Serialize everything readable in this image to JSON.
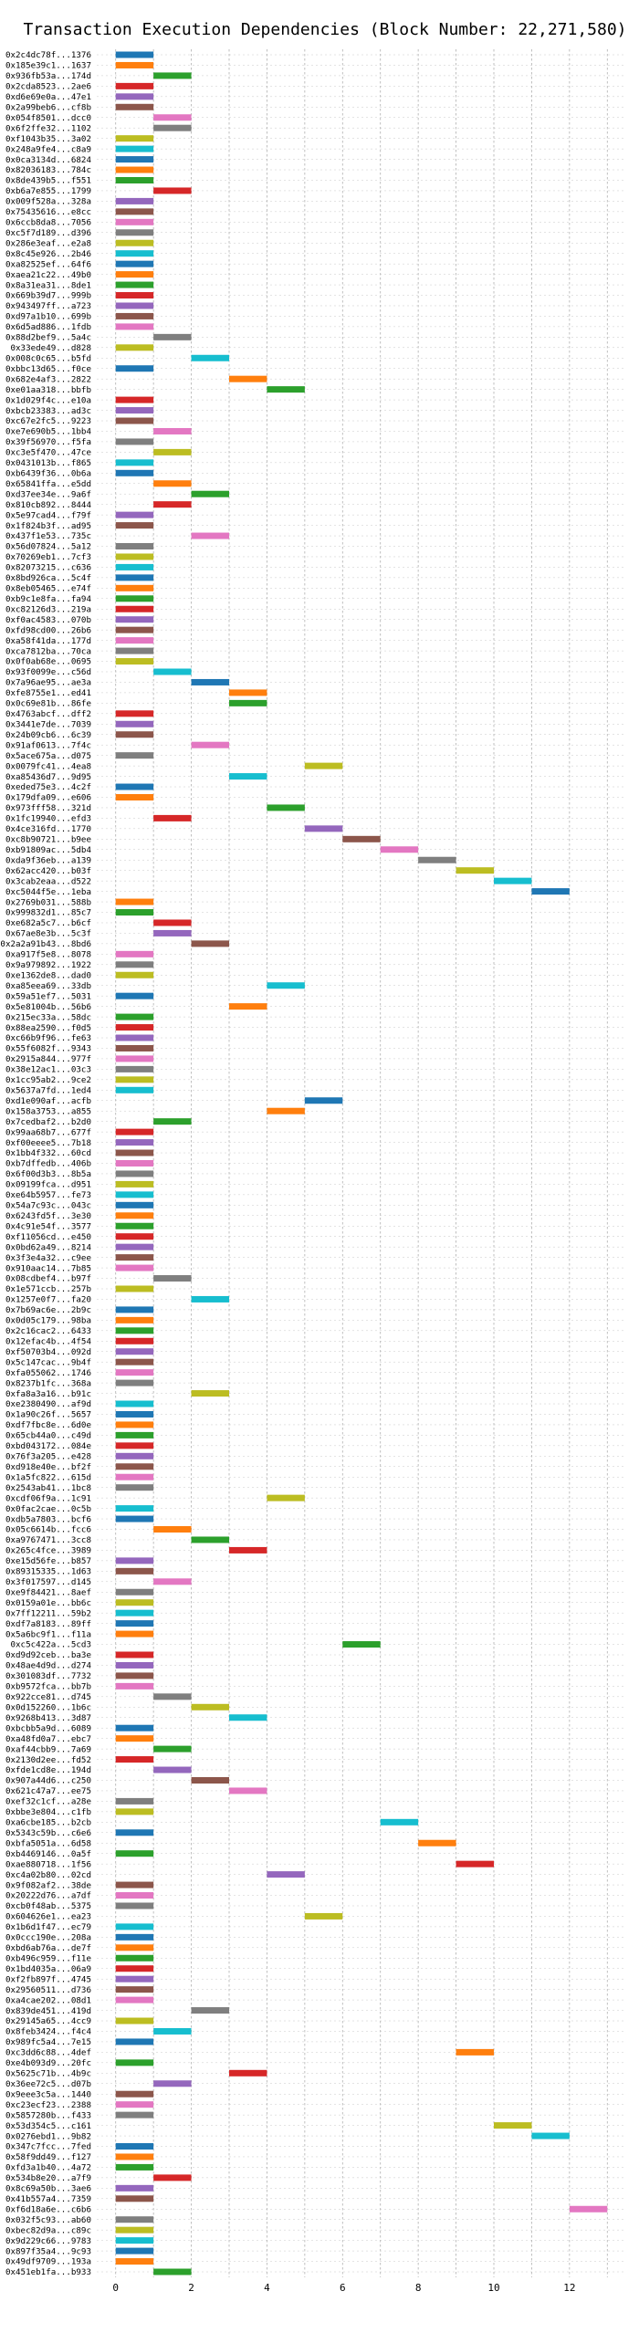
{
  "chart_data": {
    "type": "bar",
    "orientation": "horizontal-gantt",
    "title": "Transaction Execution Dependencies (Block Number: 22,271,580)",
    "xlabel": "",
    "ylabel": "",
    "xlim": [
      -0.5,
      13.5
    ],
    "xticks": [
      0,
      2,
      4,
      6,
      8,
      10,
      12
    ],
    "grid": true,
    "bar_width": 1,
    "colors": [
      "#1f77b4",
      "#ff7f0e",
      "#2ca02c",
      "#d62728",
      "#9467bd",
      "#8c564b",
      "#e377c2",
      "#7f7f7f",
      "#bcbd22",
      "#17becf"
    ],
    "transactions": [
      {
        "label": "0x2c4dc78f...1376",
        "start": 0
      },
      {
        "label": "0x185e39c1...1637",
        "start": 0
      },
      {
        "label": "0x936fb53a...174d",
        "start": 1
      },
      {
        "label": "0x2cda8523...2ae6",
        "start": 0
      },
      {
        "label": "0xd6e69e0a...47e1",
        "start": 0
      },
      {
        "label": "0x2a99beb6...cf8b",
        "start": 0
      },
      {
        "label": "0x054f8501...dcc0",
        "start": 1
      },
      {
        "label": "0x6f2ffe32...1102",
        "start": 1
      },
      {
        "label": "0xf1043b35...3a02",
        "start": 0
      },
      {
        "label": "0x248a9fe4...c8a9",
        "start": 0
      },
      {
        "label": "0x0ca3134d...6824",
        "start": 0
      },
      {
        "label": "0x82036183...784c",
        "start": 0
      },
      {
        "label": "0x8de439b5...f551",
        "start": 0
      },
      {
        "label": "0xb6a7e855...1799",
        "start": 1
      },
      {
        "label": "0x009f528a...328a",
        "start": 0
      },
      {
        "label": "0x75435616...e8cc",
        "start": 0
      },
      {
        "label": "0x6ccb8da8...7056",
        "start": 0
      },
      {
        "label": "0xc5f7d189...d396",
        "start": 0
      },
      {
        "label": "0x286e3eaf...e2a8",
        "start": 0
      },
      {
        "label": "0x8c45e926...2b46",
        "start": 0
      },
      {
        "label": "0xa82525ef...64f6",
        "start": 0
      },
      {
        "label": "0xaea21c22...49b0",
        "start": 0
      },
      {
        "label": "0x8a31ea31...8de1",
        "start": 0
      },
      {
        "label": "0x669b39d7...999b",
        "start": 0
      },
      {
        "label": "0x943497ff...a723",
        "start": 0
      },
      {
        "label": "0xd97a1b10...699b",
        "start": 0
      },
      {
        "label": "0x6d5ad886...1fdb",
        "start": 0
      },
      {
        "label": "0x88d2bef9...5a4c",
        "start": 1
      },
      {
        "label": "0x33ede49...d828",
        "start": 0
      },
      {
        "label": "0x008c0c65...b5fd",
        "start": 2
      },
      {
        "label": "0xbbc13d65...f0ce",
        "start": 0
      },
      {
        "label": "0x682e4af3...2822",
        "start": 3
      },
      {
        "label": "0xe01aa318...bbfb",
        "start": 4
      },
      {
        "label": "0x1d029f4c...e10a",
        "start": 0
      },
      {
        "label": "0xbcb23383...ad3c",
        "start": 0
      },
      {
        "label": "0xc67e2fc5...9223",
        "start": 0
      },
      {
        "label": "0xe7e690b5...1bb4",
        "start": 1
      },
      {
        "label": "0x39f56970...f5fa",
        "start": 0
      },
      {
        "label": "0xc3e5f470...47ce",
        "start": 1
      },
      {
        "label": "0x0431013b...f865",
        "start": 0
      },
      {
        "label": "0xb6439f36...0b6a",
        "start": 0
      },
      {
        "label": "0x65841ffa...e5dd",
        "start": 1
      },
      {
        "label": "0xd37ee34e...9a6f",
        "start": 2
      },
      {
        "label": "0x810cb892...8444",
        "start": 1
      },
      {
        "label": "0x5e97cad4...f79f",
        "start": 0
      },
      {
        "label": "0x1f824b3f...ad95",
        "start": 0
      },
      {
        "label": "0x437f1e53...735c",
        "start": 2
      },
      {
        "label": "0x56d07824...5a12",
        "start": 0
      },
      {
        "label": "0x70269eb1...7cf3",
        "start": 0
      },
      {
        "label": "0x82073215...c636",
        "start": 0
      },
      {
        "label": "0x8bd926ca...5c4f",
        "start": 0
      },
      {
        "label": "0x8eb05465...e74f",
        "start": 0
      },
      {
        "label": "0xb9c1e8fa...fa94",
        "start": 0
      },
      {
        "label": "0xc82126d3...219a",
        "start": 0
      },
      {
        "label": "0xf0ac4583...070b",
        "start": 0
      },
      {
        "label": "0xfd98cd00...26b6",
        "start": 0
      },
      {
        "label": "0xa58f41da...177d",
        "start": 0
      },
      {
        "label": "0xca7812ba...70ca",
        "start": 0
      },
      {
        "label": "0x0f0ab68e...0695",
        "start": 0
      },
      {
        "label": "0x93f0099e...c56d",
        "start": 1
      },
      {
        "label": "0x7a96ae95...ae3a",
        "start": 2
      },
      {
        "label": "0xfe8755e1...ed41",
        "start": 3
      },
      {
        "label": "0x0c69e81b...86fe",
        "start": 3
      },
      {
        "label": "0x4763abcf...dff2",
        "start": 0
      },
      {
        "label": "0x3441e7de...7039",
        "start": 0
      },
      {
        "label": "0x24b09cb6...6c39",
        "start": 0
      },
      {
        "label": "0x91af0613...7f4c",
        "start": 2
      },
      {
        "label": "0x5ace675a...d075",
        "start": 0
      },
      {
        "label": "0x0079fc41...4ea8",
        "start": 5
      },
      {
        "label": "0xa85436d7...9d95",
        "start": 3
      },
      {
        "label": "0xeded75e3...4c2f",
        "start": 0
      },
      {
        "label": "0x179dfa09...e606",
        "start": 0
      },
      {
        "label": "0x973fff58...321d",
        "start": 4
      },
      {
        "label": "0x1fc19940...efd3",
        "start": 1
      },
      {
        "label": "0x4ce316fd...1770",
        "start": 5
      },
      {
        "label": "0xc8b90721...b9ee",
        "start": 6
      },
      {
        "label": "0xb91809ac...5db4",
        "start": 7
      },
      {
        "label": "0xda9f36eb...a139",
        "start": 8
      },
      {
        "label": "0x62acc420...b03f",
        "start": 9
      },
      {
        "label": "0x3cab2eaa...d522",
        "start": 10
      },
      {
        "label": "0xc5044f5e...1eba",
        "start": 11
      },
      {
        "label": "0x2769b031...588b",
        "start": 0
      },
      {
        "label": "0x999832d1...85c7",
        "start": 0
      },
      {
        "label": "0xe682a5c7...b6cf",
        "start": 1
      },
      {
        "label": "0x67ae8e3b...5c3f",
        "start": 1
      },
      {
        "label": "0x2a2a91b43...8bd6",
        "start": 2
      },
      {
        "label": "0xa917f5e8...8078",
        "start": 0
      },
      {
        "label": "0x9a979892...1922",
        "start": 0
      },
      {
        "label": "0xe1362de8...dad0",
        "start": 0
      },
      {
        "label": "0xa85eea69...33db",
        "start": 4
      },
      {
        "label": "0x59a51ef7...5031",
        "start": 0
      },
      {
        "label": "0x5e81004b...56b6",
        "start": 3
      },
      {
        "label": "0x215ec33a...58dc",
        "start": 0
      },
      {
        "label": "0x88ea2590...f0d5",
        "start": 0
      },
      {
        "label": "0xc66b9f96...fe63",
        "start": 0
      },
      {
        "label": "0x55f6082f...9343",
        "start": 0
      },
      {
        "label": "0x2915a844...977f",
        "start": 0
      },
      {
        "label": "0x38e12ac1...03c3",
        "start": 0
      },
      {
        "label": "0x1cc95ab2...9ce2",
        "start": 0
      },
      {
        "label": "0x5637a7fd...1ed4",
        "start": 0
      },
      {
        "label": "0xd1e090af...acfb",
        "start": 5
      },
      {
        "label": "0x158a3753...a855",
        "start": 4
      },
      {
        "label": "0x7cedbaf2...b2d0",
        "start": 1
      },
      {
        "label": "0x99aa68b7...677f",
        "start": 0
      },
      {
        "label": "0xf00eeee5...7b18",
        "start": 0
      },
      {
        "label": "0x1bb4f332...60cd",
        "start": 0
      },
      {
        "label": "0xb7dffedb...406b",
        "start": 0
      },
      {
        "label": "0x6f00d3b3...8b5a",
        "start": 0
      },
      {
        "label": "0x09199fca...d951",
        "start": 0
      },
      {
        "label": "0xe64b5957...fe73",
        "start": 0
      },
      {
        "label": "0x54a7c93c...043c",
        "start": 0
      },
      {
        "label": "0x6243fd5f...3e30",
        "start": 0
      },
      {
        "label": "0x4c91e54f...3577",
        "start": 0
      },
      {
        "label": "0xf11056cd...e450",
        "start": 0
      },
      {
        "label": "0x0bd62a49...8214",
        "start": 0
      },
      {
        "label": "0x3f3e4a32...c9ee",
        "start": 0
      },
      {
        "label": "0x910aac14...7b85",
        "start": 0
      },
      {
        "label": "0x08cdbef4...b97f",
        "start": 1
      },
      {
        "label": "0x1e571ccb...257b",
        "start": 0
      },
      {
        "label": "0x1257e0f7...fa20",
        "start": 2
      },
      {
        "label": "0x7b69ac6e...2b9c",
        "start": 0
      },
      {
        "label": "0x0d05c179...98ba",
        "start": 0
      },
      {
        "label": "0x2c16cac2...6433",
        "start": 0
      },
      {
        "label": "0x12efac4b...4f54",
        "start": 0
      },
      {
        "label": "0xf50703b4...092d",
        "start": 0
      },
      {
        "label": "0x5c147cac...9b4f",
        "start": 0
      },
      {
        "label": "0xfa055062...1746",
        "start": 0
      },
      {
        "label": "0x8237b1fc...368a",
        "start": 0
      },
      {
        "label": "0xfa8a3a16...b91c",
        "start": 2
      },
      {
        "label": "0xe2380490...af9d",
        "start": 0
      },
      {
        "label": "0x1a90c26f...5657",
        "start": 0
      },
      {
        "label": "0xdf7fbc8e...6d0e",
        "start": 0
      },
      {
        "label": "0x65cb44a0...c49d",
        "start": 0
      },
      {
        "label": "0xbd043172...084e",
        "start": 0
      },
      {
        "label": "0x76f3a205...e428",
        "start": 0
      },
      {
        "label": "0xd918e40e...bf2f",
        "start": 0
      },
      {
        "label": "0x1a5fc822...615d",
        "start": 0
      },
      {
        "label": "0x2543ab41...1bc8",
        "start": 0
      },
      {
        "label": "0xcdf06f9a...1c91",
        "start": 4
      },
      {
        "label": "0x0fac2cae...0c5b",
        "start": 0
      },
      {
        "label": "0xdb5a7803...bcf6",
        "start": 0
      },
      {
        "label": "0x05c6614b...fcc6",
        "start": 1
      },
      {
        "label": "0xa9767471...3cc8",
        "start": 2
      },
      {
        "label": "0x265c4fce...3989",
        "start": 3
      },
      {
        "label": "0xe15d56fe...b857",
        "start": 0
      },
      {
        "label": "0x89315335...1d63",
        "start": 0
      },
      {
        "label": "0x3f017597...d145",
        "start": 1
      },
      {
        "label": "0xe9f84421...8aef",
        "start": 0
      },
      {
        "label": "0x0159a01e...bb6c",
        "start": 0
      },
      {
        "label": "0x7ff12211...59b2",
        "start": 0
      },
      {
        "label": "0xdf7a8183...89ff",
        "start": 0
      },
      {
        "label": "0x5a6bc9f1...f11a",
        "start": 0
      },
      {
        "label": "0xc5c422a...5cd3",
        "start": 6
      },
      {
        "label": "0xd9d92ceb...ba3e",
        "start": 0
      },
      {
        "label": "0x48ae4d9d...d274",
        "start": 0
      },
      {
        "label": "0x301083df...7732",
        "start": 0
      },
      {
        "label": "0xb9572fca...bb7b",
        "start": 0
      },
      {
        "label": "0x922cce81...d745",
        "start": 1
      },
      {
        "label": "0x0d152260...1b6c",
        "start": 2
      },
      {
        "label": "0x9268b413...3d87",
        "start": 3
      },
      {
        "label": "0xbcbb5a9d...6089",
        "start": 0
      },
      {
        "label": "0xa48fd0a7...ebc7",
        "start": 0
      },
      {
        "label": "0xaf44cbb9...7a69",
        "start": 1
      },
      {
        "label": "0x2130d2ee...fd52",
        "start": 0
      },
      {
        "label": "0xfde1cd8e...194d",
        "start": 1
      },
      {
        "label": "0x907a44d6...c250",
        "start": 2
      },
      {
        "label": "0x621c47a7...ee75",
        "start": 3
      },
      {
        "label": "0xef32c1cf...a28e",
        "start": 0
      },
      {
        "label": "0xbbe3e804...c1fb",
        "start": 0
      },
      {
        "label": "0xa6cbe185...b2cb",
        "start": 7
      },
      {
        "label": "0x5343c59b...c6e6",
        "start": 0
      },
      {
        "label": "0xbfa5051a...6d58",
        "start": 8
      },
      {
        "label": "0xb4469146...0a5f",
        "start": 0
      },
      {
        "label": "0xae880718...1f56",
        "start": 9
      },
      {
        "label": "0xc4a02b80...02cd",
        "start": 4
      },
      {
        "label": "0x9f082af2...38de",
        "start": 0
      },
      {
        "label": "0x20222d76...a7df",
        "start": 0
      },
      {
        "label": "0xcb0f48ab...5375",
        "start": 0
      },
      {
        "label": "0x604626e1...ea23",
        "start": 5
      },
      {
        "label": "0x1b6d1f47...ec79",
        "start": 0
      },
      {
        "label": "0x0ccc190e...208a",
        "start": 0
      },
      {
        "label": "0xbd6ab76a...de7f",
        "start": 0
      },
      {
        "label": "0xb496c959...f11e",
        "start": 0
      },
      {
        "label": "0x1bd4035a...06a9",
        "start": 0
      },
      {
        "label": "0xf2fb897f...4745",
        "start": 0
      },
      {
        "label": "0x29560511...d736",
        "start": 0
      },
      {
        "label": "0xa4cae202...08d1",
        "start": 0
      },
      {
        "label": "0x839de451...419d",
        "start": 2
      },
      {
        "label": "0x29145a65...4cc9",
        "start": 0
      },
      {
        "label": "0x8feb3424...f4c4",
        "start": 1
      },
      {
        "label": "0x989fc5a4...7e15",
        "start": 0
      },
      {
        "label": "0xc3dd6c88...4def",
        "start": 9
      },
      {
        "label": "0xe4b093d9...20fc",
        "start": 0
      },
      {
        "label": "0x5625c71b...4b9c",
        "start": 3
      },
      {
        "label": "0x36ee72c5...d07b",
        "start": 1
      },
      {
        "label": "0x9eee3c5a...1440",
        "start": 0
      },
      {
        "label": "0xc23ecf23...2388",
        "start": 0
      },
      {
        "label": "0x5857280b...f433",
        "start": 0
      },
      {
        "label": "0x53d354c5...c161",
        "start": 10
      },
      {
        "label": "0x0276ebd1...9b82",
        "start": 11
      },
      {
        "label": "0x347c7fcc...7fed",
        "start": 0
      },
      {
        "label": "0x58f9dd49...f127",
        "start": 0
      },
      {
        "label": "0xfd3a1b40...4a72",
        "start": 0
      },
      {
        "label": "0x534b8e20...a7f9",
        "start": 1
      },
      {
        "label": "0x8c69a50b...3ae6",
        "start": 0
      },
      {
        "label": "0x41b557a4...7359",
        "start": 0
      },
      {
        "label": "0xf6d18a6e...c6b6",
        "start": 12
      },
      {
        "label": "0x032f5c93...ab60",
        "start": 0
      },
      {
        "label": "0xbec82d9a...c89c",
        "start": 0
      },
      {
        "label": "0x9d229c66...9783",
        "start": 0
      },
      {
        "label": "0x897f35a4...9c93",
        "start": 0
      },
      {
        "label": "0x49df9709...193a",
        "start": 0
      },
      {
        "label": "0x451eb1fa...b933",
        "start": 1
      }
    ]
  }
}
